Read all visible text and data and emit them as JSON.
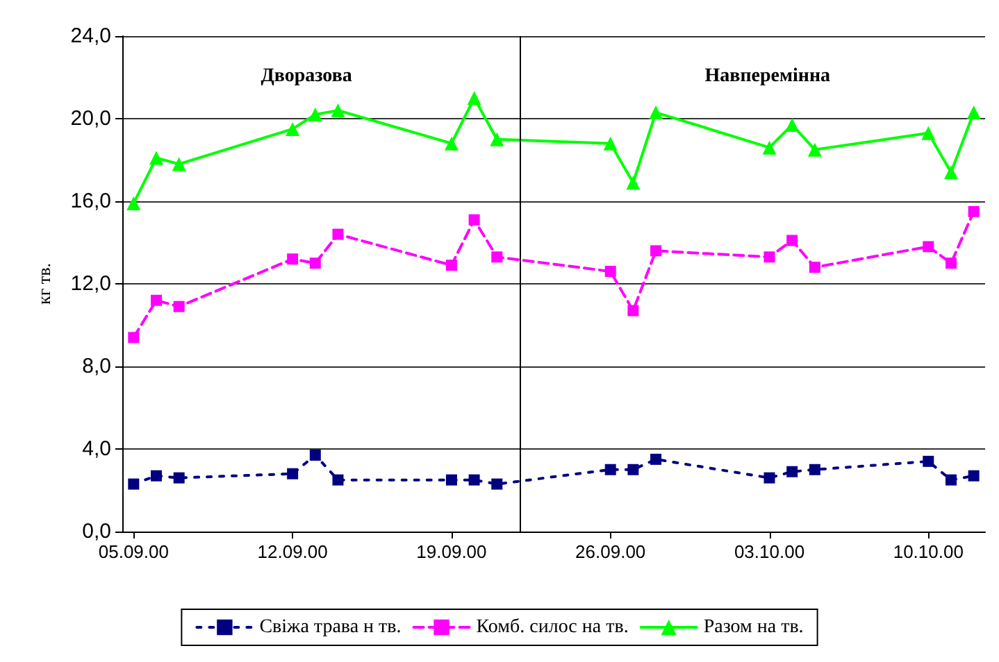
{
  "chart_data": {
    "type": "line",
    "ylabel": "кг тв.",
    "annotations": [
      "Дворазова",
      "Навперемінна"
    ],
    "x": [
      "2000-09-05",
      "2000-09-06",
      "2000-09-07",
      "2000-09-12",
      "2000-09-13",
      "2000-09-14",
      "2000-09-19",
      "2000-09-20",
      "2000-09-21",
      "2000-09-26",
      "2000-09-27",
      "2000-09-28",
      "2000-10-03",
      "2000-10-04",
      "2000-10-05",
      "2000-10-10",
      "2000-10-11",
      "2000-10-12"
    ],
    "series": [
      {
        "name": "Свіжа трава н тв.",
        "color": "#000080",
        "line_style": "dotted",
        "marker": "square",
        "values": [
          2.3,
          2.7,
          2.6,
          2.8,
          3.7,
          2.5,
          2.5,
          2.5,
          2.3,
          3.0,
          3.0,
          3.5,
          2.6,
          2.9,
          3.0,
          3.4,
          2.5,
          2.7
        ]
      },
      {
        "name": "Комб. силос на тв.",
        "color": "#ff00ff",
        "line_style": "dashed",
        "marker": "square",
        "values": [
          9.4,
          11.2,
          10.9,
          13.2,
          13.0,
          14.4,
          12.9,
          15.1,
          13.3,
          12.6,
          10.7,
          13.6,
          13.3,
          14.1,
          12.8,
          13.8,
          13.0,
          15.5
        ]
      },
      {
        "name": "Разом на тв.",
        "color": "#00ff00",
        "line_style": "solid",
        "marker": "triangle",
        "values": [
          15.9,
          18.1,
          17.8,
          19.5,
          20.2,
          20.4,
          18.8,
          21.0,
          19.0,
          18.8,
          16.9,
          20.3,
          18.6,
          19.7,
          18.5,
          19.3,
          17.4,
          20.3
        ]
      }
    ],
    "xlim": [
      "2000-09-04T12:00",
      "2000-10-12T12:00"
    ],
    "xticks": [
      {
        "value": "2000-09-05",
        "label": "05.09.00"
      },
      {
        "value": "2000-09-12",
        "label": "12.09.00"
      },
      {
        "value": "2000-09-19",
        "label": "19.09.00"
      },
      {
        "value": "2000-09-26",
        "label": "26.09.00"
      },
      {
        "value": "2000-10-03",
        "label": "03.10.00"
      },
      {
        "value": "2000-10-10",
        "label": "10.10.00"
      }
    ],
    "ylim": [
      0,
      24
    ],
    "yticks": [
      {
        "value": 0,
        "label": "0,0"
      },
      {
        "value": 4,
        "label": "4,0"
      },
      {
        "value": 8,
        "label": "8,0"
      },
      {
        "value": 12,
        "label": "12,0"
      },
      {
        "value": 16,
        "label": "16,0"
      },
      {
        "value": 20,
        "label": "20,0"
      },
      {
        "value": 24,
        "label": "24,0"
      }
    ],
    "ref_lines": [
      {
        "axis": "x",
        "value": "2000-09-22",
        "color": "#000000"
      }
    ],
    "grid": "y",
    "legend": "bottom"
  }
}
